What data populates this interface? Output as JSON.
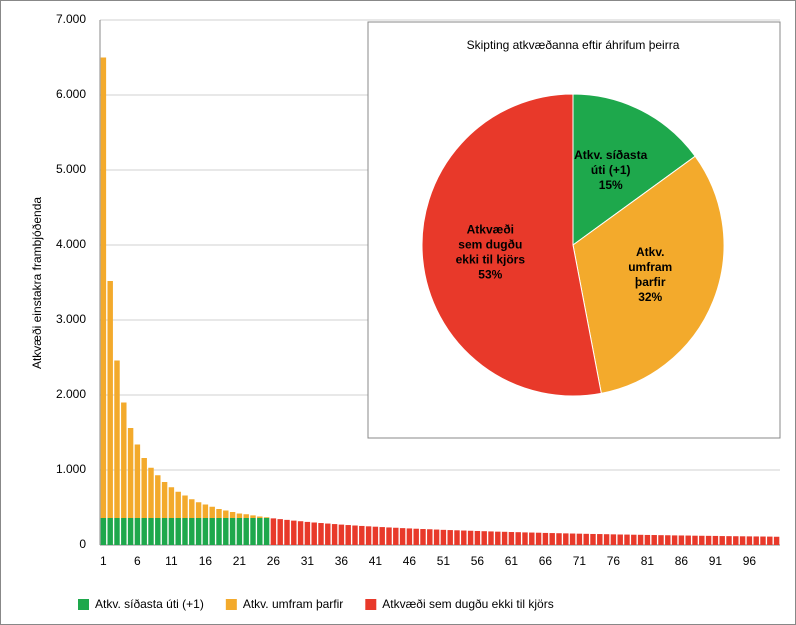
{
  "chart_data": [
    {
      "type": "bar",
      "y_label": "Atkvæði einstakra frambjóðenda",
      "categories": [
        "1",
        null,
        null,
        null,
        null,
        "6",
        null,
        null,
        null,
        null,
        "11",
        null,
        null,
        null,
        null,
        "16",
        null,
        null,
        null,
        null,
        "21",
        null,
        null,
        null,
        null,
        "26",
        null,
        null,
        null,
        null,
        "31",
        null,
        null,
        null,
        null,
        "36",
        null,
        null,
        null,
        null,
        "41",
        null,
        null,
        null,
        null,
        "46",
        null,
        null,
        null,
        null,
        "51",
        null,
        null,
        null,
        null,
        "56",
        null,
        null,
        null,
        null,
        "61",
        null,
        null,
        null,
        null,
        "66",
        null,
        null,
        null,
        null,
        "71",
        null,
        null,
        null,
        null,
        "76",
        null,
        null,
        null,
        null,
        "81",
        null,
        null,
        null,
        null,
        "86",
        null,
        null,
        null,
        null,
        "91",
        null,
        null,
        null,
        null,
        "96",
        null,
        null,
        null,
        null
      ],
      "series": [
        {
          "name": "Atkv. síðasta úti (+1)",
          "color": "#1ea84c",
          "values": [
            360,
            360,
            360,
            360,
            360,
            360,
            360,
            360,
            360,
            360,
            360,
            360,
            360,
            360,
            360,
            360,
            360,
            360,
            360,
            360,
            360,
            360,
            360,
            360,
            360,
            null,
            null,
            null,
            null,
            null,
            null,
            null,
            null,
            null,
            null,
            null,
            null,
            null,
            null,
            null,
            null,
            null,
            null,
            null,
            null,
            null,
            null,
            null,
            null,
            null,
            null,
            null,
            null,
            null,
            null,
            null,
            null,
            null,
            null,
            null,
            null,
            null,
            null,
            null,
            null,
            null,
            null,
            null,
            null,
            null,
            null,
            null,
            null,
            null,
            null,
            null,
            null,
            null,
            null,
            null,
            null,
            null,
            null,
            null,
            null,
            null,
            null,
            null,
            null,
            null,
            null,
            null,
            null,
            null,
            null,
            null,
            null,
            null,
            null,
            null
          ]
        },
        {
          "name": "Atkv. umfram þarfir",
          "color": "#f3aa2c",
          "values": [
            6140,
            3160,
            2100,
            1540,
            1200,
            980,
            800,
            670,
            570,
            480,
            410,
            350,
            300,
            250,
            210,
            180,
            150,
            120,
            100,
            80,
            60,
            50,
            35,
            20,
            10,
            null,
            null,
            null,
            null,
            null,
            null,
            null,
            null,
            null,
            null,
            null,
            null,
            null,
            null,
            null,
            null,
            null,
            null,
            null,
            null,
            null,
            null,
            null,
            null,
            null,
            null,
            null,
            null,
            null,
            null,
            null,
            null,
            null,
            null,
            null,
            null,
            null,
            null,
            null,
            null,
            null,
            null,
            null,
            null,
            null,
            null,
            null,
            null,
            null,
            null,
            null,
            null,
            null,
            null,
            null,
            null,
            null,
            null,
            null,
            null,
            null,
            null,
            null,
            null,
            null,
            null,
            null,
            null,
            null,
            null,
            null,
            null,
            null,
            null,
            null
          ]
        },
        {
          "name": "Atkvæði sem dugðu ekki til kjörs",
          "color": "#e8392a",
          "values": [
            null,
            null,
            null,
            null,
            null,
            null,
            null,
            null,
            null,
            null,
            null,
            null,
            null,
            null,
            null,
            null,
            null,
            null,
            null,
            null,
            null,
            null,
            null,
            null,
            null,
            355,
            345,
            335,
            325,
            317,
            308,
            300,
            293,
            286,
            279,
            272,
            266,
            260,
            254,
            249,
            244,
            239,
            234,
            230,
            225,
            221,
            217,
            213,
            210,
            206,
            202,
            199,
            196,
            193,
            190,
            187,
            184,
            181,
            178,
            176,
            173,
            171,
            168,
            166,
            164,
            161,
            159,
            157,
            155,
            153,
            151,
            149,
            147,
            146,
            144,
            142,
            140,
            139,
            137,
            136,
            134,
            133,
            131,
            130,
            128,
            127,
            126,
            124,
            123,
            122,
            121,
            119,
            118,
            117,
            116,
            115,
            114,
            113,
            112,
            110
          ]
        }
      ],
      "ylim": [
        0,
        7000
      ],
      "yticks": [
        0,
        {
          "value": 1000,
          "label": "1.000"
        },
        {
          "value": 2000,
          "label": "2.000"
        },
        {
          "value": 3000,
          "label": "3.000"
        },
        {
          "value": 4000,
          "label": "4.000"
        },
        {
          "value": 5000,
          "label": "5.000"
        },
        {
          "value": 6000,
          "label": "6.000"
        },
        {
          "value": 7000,
          "label": "7.000"
        }
      ],
      "grid": true,
      "stacked": true,
      "legend": "bottom"
    },
    {
      "type": "pie",
      "title": "Skipting  atkvæðanna eftir áhrifum þeirra",
      "labels": [
        [
          "Atkv. síðasta",
          "úti (+1)"
        ],
        [
          "Atkv.",
          "umfram",
          "þarfir"
        ],
        [
          "Atkvæði",
          "sem dugðu",
          "ekki til kjörs"
        ]
      ],
      "values": [
        15,
        32,
        53
      ],
      "value_labels": [
        "15%",
        "32%",
        "53%"
      ],
      "colors": [
        "#1ea84c",
        "#f3aa2c",
        "#e8392a"
      ]
    }
  ]
}
